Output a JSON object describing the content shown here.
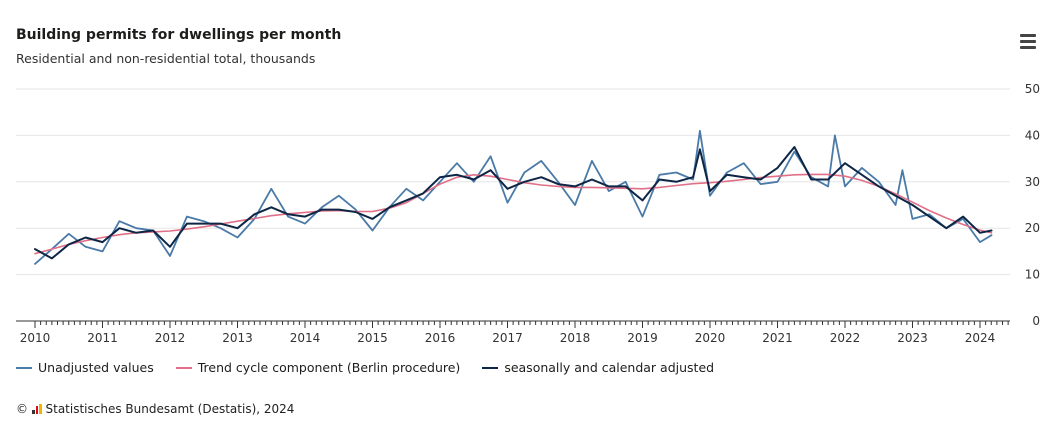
{
  "header": {
    "title": "Building permits for dwellings per month",
    "subtitle": "Residential and non-residential total, thousands"
  },
  "menu_icon": "hamburger-icon",
  "footer": {
    "copyright": "©",
    "source_text": "Statistisches Bundesamt (Destatis), 2024"
  },
  "colors": {
    "unadjusted": "#4a7aa8",
    "trend": "#e07088",
    "adjusted": "#0d2646",
    "grid": "#e6e6e6",
    "axis": "#333333"
  },
  "chart_data": {
    "type": "line",
    "title": "Building permits for dwellings per month",
    "subtitle": "Residential and non-residential total, thousands",
    "xlabel": "",
    "ylabel": "",
    "xlim": [
      2010,
      2024.5
    ],
    "ylim": [
      0,
      50
    ],
    "y_ticks": [
      0,
      10,
      20,
      30,
      40,
      50
    ],
    "y_tick_labels": [
      "0",
      "10",
      "20",
      "30",
      "40",
      "50"
    ],
    "x_ticks": [
      2010,
      2011,
      2012,
      2013,
      2014,
      2015,
      2016,
      2017,
      2018,
      2019,
      2020,
      2021,
      2022,
      2023,
      2024
    ],
    "x_tick_labels": [
      "2010",
      "2011",
      "2012",
      "2013",
      "2014",
      "2015",
      "2016",
      "2017",
      "2018",
      "2019",
      "2020",
      "2021",
      "2022",
      "2023",
      "2024"
    ],
    "y_axis_position": "right",
    "grid": true,
    "legend_position": "bottom-left",
    "series": [
      {
        "name": "Unadjusted values",
        "x": [
          2010.0,
          2010.25,
          2010.5,
          2010.75,
          2011.0,
          2011.25,
          2011.5,
          2011.75,
          2012.0,
          2012.25,
          2012.5,
          2012.75,
          2013.0,
          2013.25,
          2013.5,
          2013.75,
          2014.0,
          2014.25,
          2014.5,
          2014.75,
          2015.0,
          2015.25,
          2015.5,
          2015.75,
          2016.0,
          2016.25,
          2016.5,
          2016.75,
          2017.0,
          2017.25,
          2017.5,
          2017.75,
          2018.0,
          2018.25,
          2018.5,
          2018.75,
          2019.0,
          2019.25,
          2019.5,
          2019.75,
          2019.85,
          2020.0,
          2020.25,
          2020.5,
          2020.75,
          2021.0,
          2021.25,
          2021.5,
          2021.75,
          2021.85,
          2022.0,
          2022.25,
          2022.5,
          2022.75,
          2022.85,
          2023.0,
          2023.25,
          2023.5,
          2023.75,
          2024.0,
          2024.17
        ],
        "values": [
          12.3,
          15.5,
          18.8,
          16.0,
          15.0,
          21.5,
          20.0,
          19.5,
          14.0,
          22.5,
          21.5,
          20.0,
          18.0,
          22.0,
          28.5,
          22.5,
          21.0,
          24.5,
          27.0,
          24.0,
          19.5,
          24.5,
          28.5,
          26.0,
          30.0,
          34.0,
          30.0,
          35.5,
          25.5,
          32.0,
          34.5,
          30.0,
          25.0,
          34.5,
          28.0,
          30.0,
          22.5,
          31.5,
          32.0,
          30.5,
          41.0,
          27.0,
          32.0,
          34.0,
          29.5,
          30.0,
          36.5,
          31.0,
          29.0,
          40.0,
          29.0,
          33.0,
          30.0,
          25.0,
          32.5,
          22.0,
          23.0,
          20.0,
          22.0,
          17.0,
          18.5
        ]
      },
      {
        "name": "Trend cycle component (Berlin procedure)",
        "x": [
          2010.0,
          2010.25,
          2010.5,
          2010.75,
          2011.0,
          2011.25,
          2011.5,
          2011.75,
          2012.0,
          2012.25,
          2012.5,
          2012.75,
          2013.0,
          2013.25,
          2013.5,
          2013.75,
          2014.0,
          2014.25,
          2014.5,
          2014.75,
          2015.0,
          2015.25,
          2015.5,
          2015.75,
          2016.0,
          2016.25,
          2016.5,
          2016.75,
          2017.0,
          2017.25,
          2017.5,
          2017.75,
          2018.0,
          2018.25,
          2018.5,
          2018.75,
          2019.0,
          2019.25,
          2019.5,
          2019.75,
          2020.0,
          2020.25,
          2020.5,
          2020.75,
          2021.0,
          2021.25,
          2021.5,
          2021.75,
          2022.0,
          2022.25,
          2022.5,
          2022.75,
          2023.0,
          2023.25,
          2023.5,
          2023.75,
          2024.0,
          2024.17
        ],
        "values": [
          14.5,
          15.5,
          16.5,
          17.3,
          18.0,
          18.6,
          19.0,
          19.2,
          19.4,
          19.8,
          20.3,
          20.9,
          21.5,
          22.1,
          22.7,
          23.1,
          23.4,
          23.7,
          23.8,
          23.6,
          23.6,
          24.3,
          25.5,
          27.5,
          29.5,
          31.0,
          31.5,
          31.2,
          30.5,
          29.8,
          29.3,
          29.0,
          28.8,
          28.8,
          28.7,
          28.6,
          28.5,
          28.8,
          29.2,
          29.6,
          29.8,
          30.1,
          30.5,
          30.9,
          31.2,
          31.5,
          31.6,
          31.6,
          31.2,
          30.3,
          29.0,
          27.4,
          25.6,
          23.8,
          22.2,
          20.8,
          19.6,
          19.0
        ]
      },
      {
        "name": "seasonally and calendar adjusted",
        "x": [
          2010.0,
          2010.25,
          2010.5,
          2010.75,
          2011.0,
          2011.25,
          2011.5,
          2011.75,
          2012.0,
          2012.25,
          2012.5,
          2012.75,
          2013.0,
          2013.25,
          2013.5,
          2013.75,
          2014.0,
          2014.25,
          2014.5,
          2014.75,
          2015.0,
          2015.25,
          2015.5,
          2015.75,
          2016.0,
          2016.25,
          2016.5,
          2016.75,
          2017.0,
          2017.25,
          2017.5,
          2017.75,
          2018.0,
          2018.25,
          2018.5,
          2018.75,
          2019.0,
          2019.25,
          2019.5,
          2019.75,
          2019.85,
          2020.0,
          2020.25,
          2020.5,
          2020.75,
          2021.0,
          2021.25,
          2021.5,
          2021.75,
          2022.0,
          2022.25,
          2022.5,
          2022.75,
          2023.0,
          2023.25,
          2023.5,
          2023.75,
          2024.0,
          2024.17
        ],
        "values": [
          15.5,
          13.5,
          16.5,
          18.0,
          17.0,
          20.0,
          19.0,
          19.5,
          16.0,
          21.0,
          21.0,
          21.0,
          20.0,
          23.0,
          24.5,
          23.0,
          22.5,
          24.0,
          24.0,
          23.5,
          22.0,
          24.5,
          26.0,
          27.5,
          31.0,
          31.5,
          30.5,
          32.5,
          28.5,
          30.0,
          31.0,
          29.5,
          29.0,
          30.5,
          29.0,
          29.0,
          26.0,
          30.5,
          30.0,
          31.0,
          37.0,
          28.0,
          31.5,
          31.0,
          30.5,
          33.0,
          37.5,
          30.5,
          30.5,
          34.0,
          31.5,
          29.0,
          27.0,
          25.0,
          22.5,
          20.0,
          22.5,
          19.0,
          19.5
        ]
      }
    ]
  }
}
